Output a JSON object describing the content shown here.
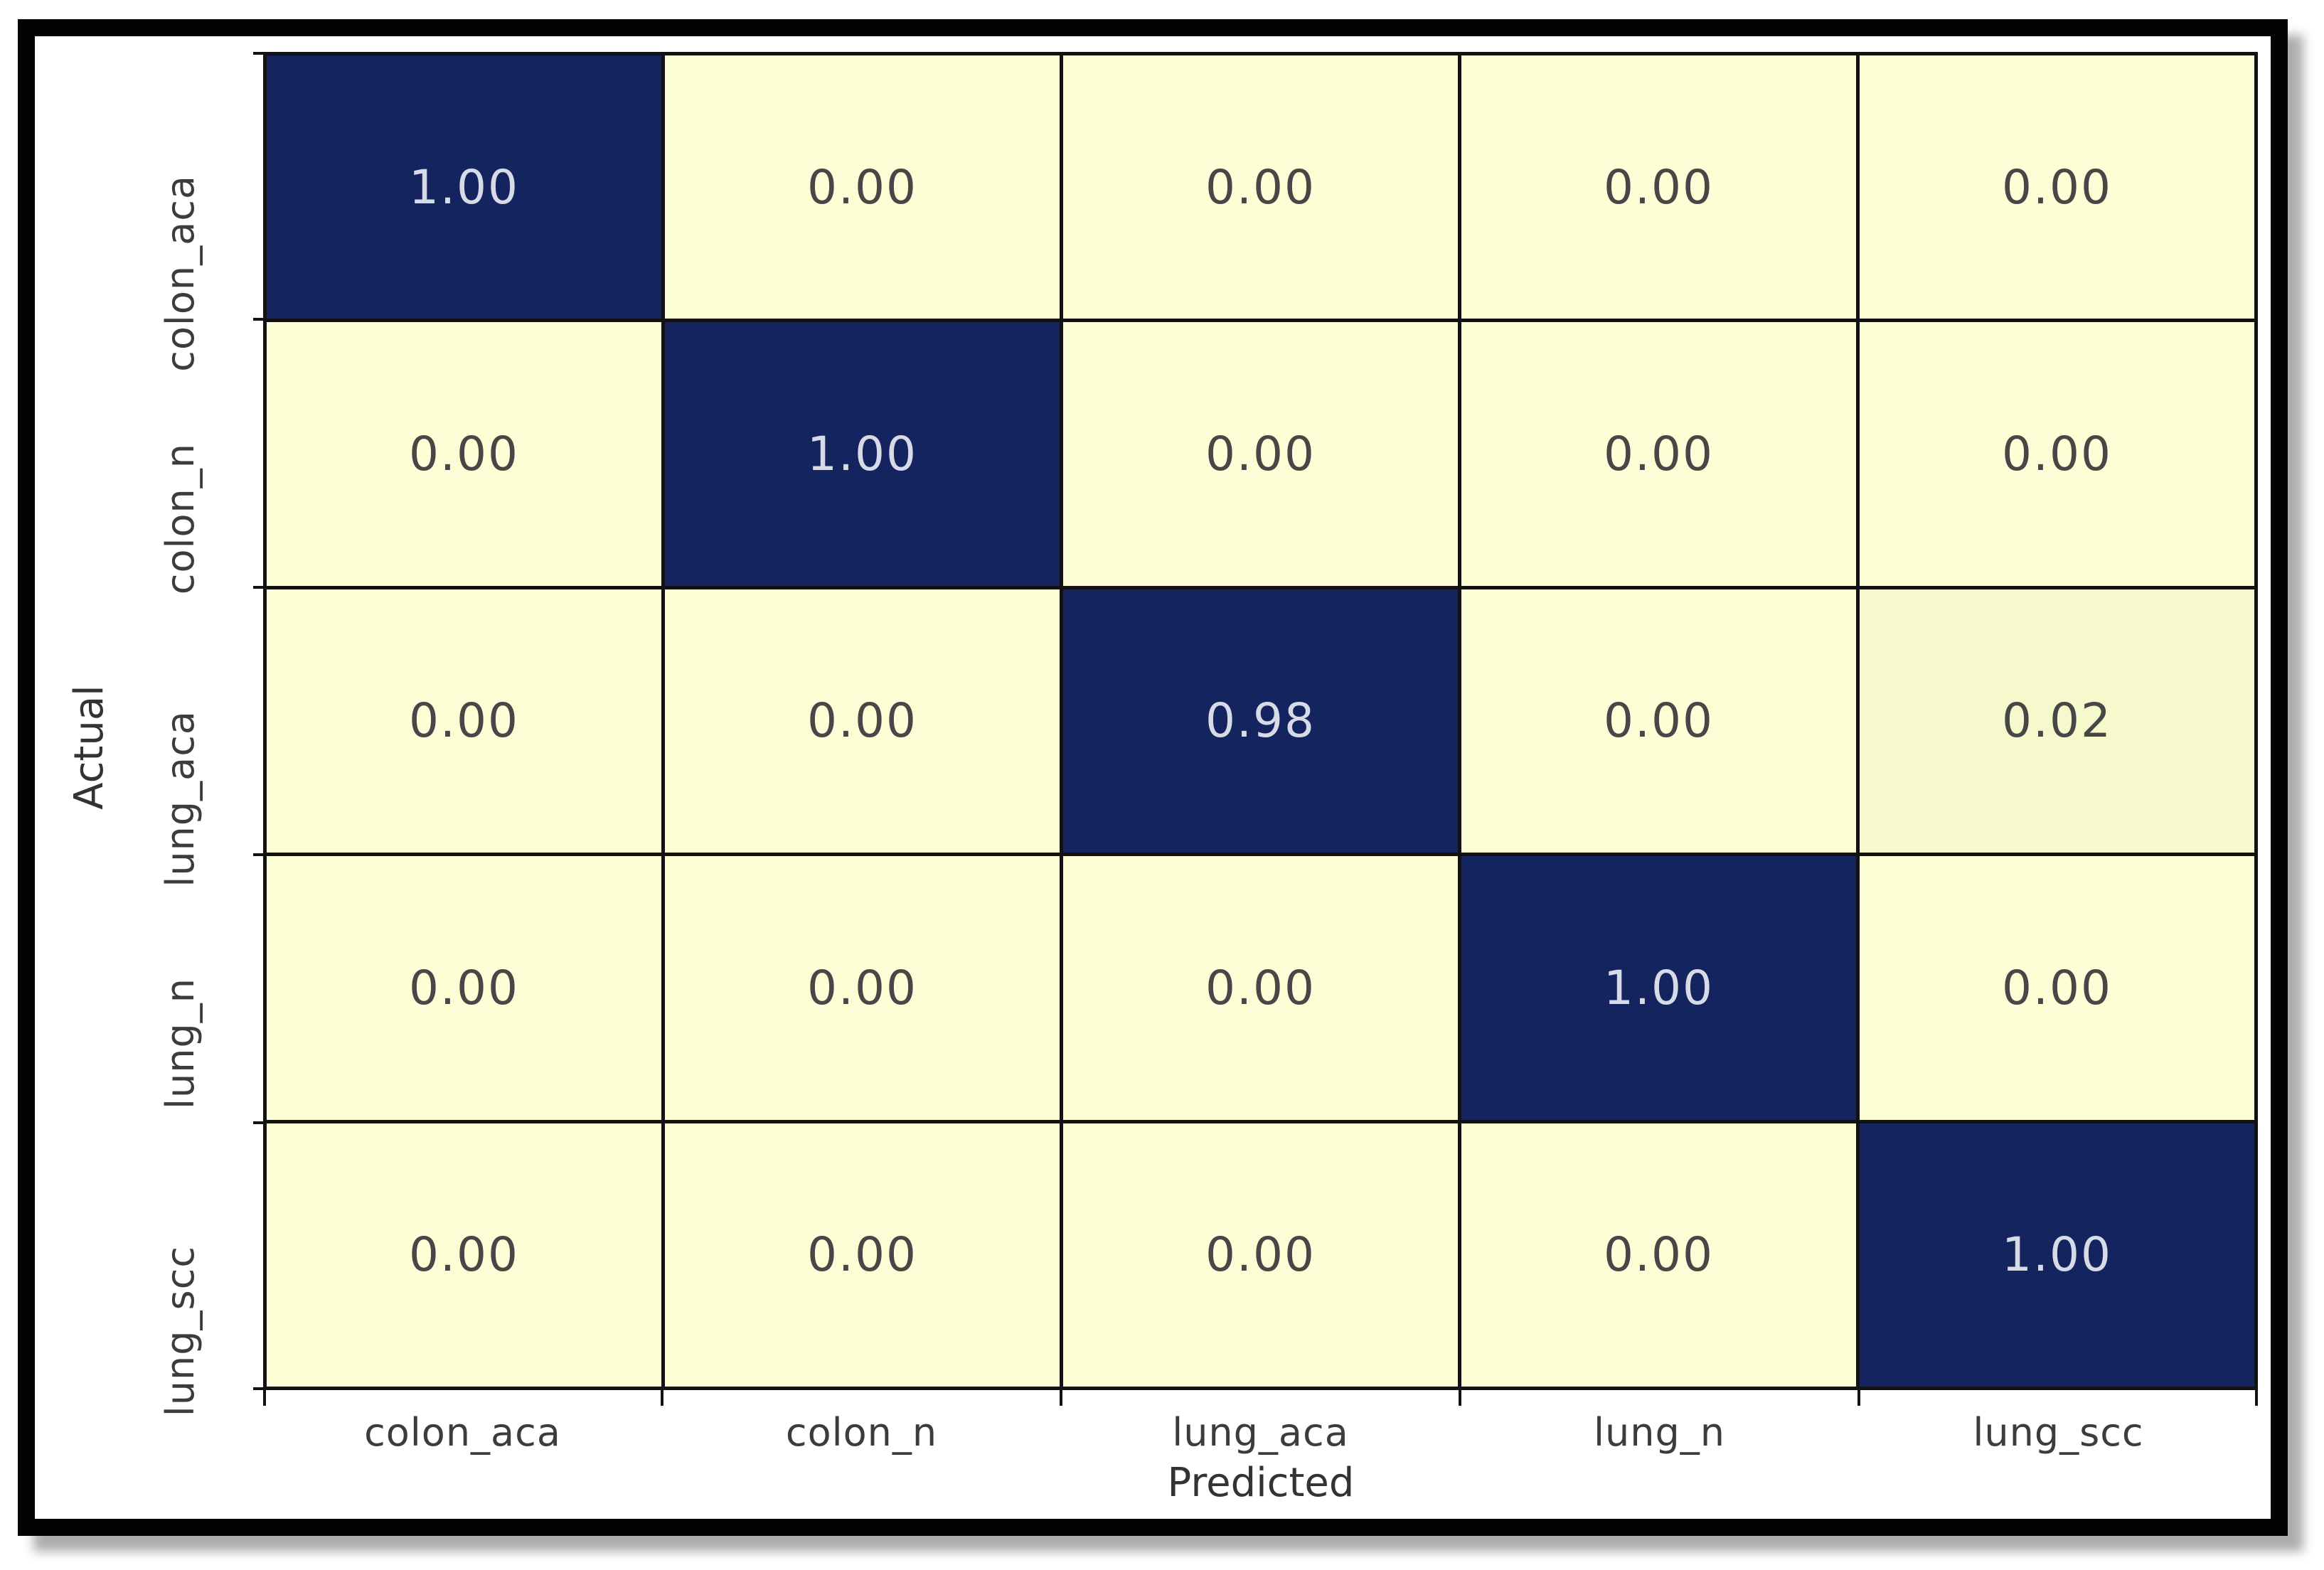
{
  "chart_data": {
    "type": "heatmap",
    "subtype": "confusion-matrix",
    "title": "",
    "xlabel": "Predicted",
    "ylabel": "Actual",
    "x_categories": [
      "colon_aca",
      "colon_n",
      "lung_aca",
      "lung_n",
      "lung_scc"
    ],
    "y_categories": [
      "colon_aca",
      "colon_n",
      "lung_aca",
      "lung_n",
      "lung_scc"
    ],
    "values": [
      [
        1.0,
        0.0,
        0.0,
        0.0,
        0.0
      ],
      [
        0.0,
        1.0,
        0.0,
        0.0,
        0.0
      ],
      [
        0.0,
        0.0,
        0.98,
        0.0,
        0.02
      ],
      [
        0.0,
        0.0,
        0.0,
        1.0,
        0.0
      ],
      [
        0.0,
        0.0,
        0.0,
        0.0,
        1.0
      ]
    ],
    "value_decimals": 2,
    "legend": "none",
    "grid": true,
    "colors": {
      "high_fill": "#14245e",
      "zero_fill": "#fdfdd6",
      "low_nonzero_fill": "#f5f9cc",
      "text_on_dark": "#d7dbe8",
      "text_on_light": "#474747",
      "gridline": "#121212",
      "frame": "#030303",
      "background": "#ffffff"
    }
  }
}
